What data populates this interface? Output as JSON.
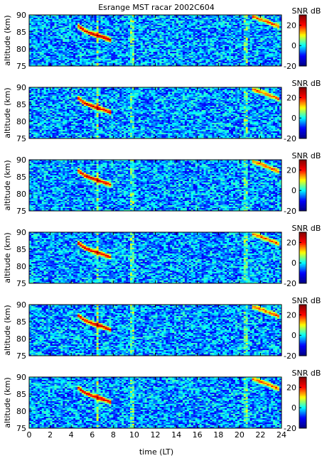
{
  "chart_data": {
    "type": "heatmap",
    "title": "Esrange MST racar 2002C604",
    "xlabel": "time (LT)",
    "ylabel": "altitude (km)",
    "xlim": [
      0,
      24
    ],
    "ylim": [
      75,
      90
    ],
    "xticks": [
      "0",
      "2",
      "4",
      "6",
      "8",
      "10",
      "12",
      "14",
      "16",
      "18",
      "20",
      "22",
      "24"
    ],
    "yticks": [
      "75",
      "80",
      "85",
      "90"
    ],
    "colorbar": {
      "label": "SNR dB",
      "range": [
        -20,
        30
      ],
      "ticks": [
        "-20",
        "0",
        "20"
      ]
    },
    "colormap": [
      "#000080",
      "#0000ff",
      "#00ffff",
      "#ffff00",
      "#ff0000",
      "#800000"
    ],
    "panels_count": 6,
    "features": [
      {
        "name": "echo-layer",
        "type": "curve",
        "points": [
          [
            4.6,
            87
          ],
          [
            5.2,
            85.5
          ],
          [
            6.0,
            84.5
          ],
          [
            7.0,
            83.5
          ],
          [
            7.8,
            82.6
          ]
        ],
        "strength_db": 25
      },
      {
        "name": "evening-layer",
        "type": "curve",
        "points": [
          [
            21.2,
            89.5
          ],
          [
            22.2,
            88.5
          ],
          [
            23.0,
            87.5
          ],
          [
            23.8,
            86.5
          ]
        ],
        "strength_db": 18
      },
      {
        "name": "interference-line-1",
        "type": "vline",
        "x": 6.5,
        "strength_db": 8
      },
      {
        "name": "interference-line-2",
        "type": "vline",
        "x": 9.8,
        "strength_db": 6
      },
      {
        "name": "interference-line-3",
        "type": "vline",
        "x": 20.6,
        "strength_db": 6
      }
    ]
  }
}
